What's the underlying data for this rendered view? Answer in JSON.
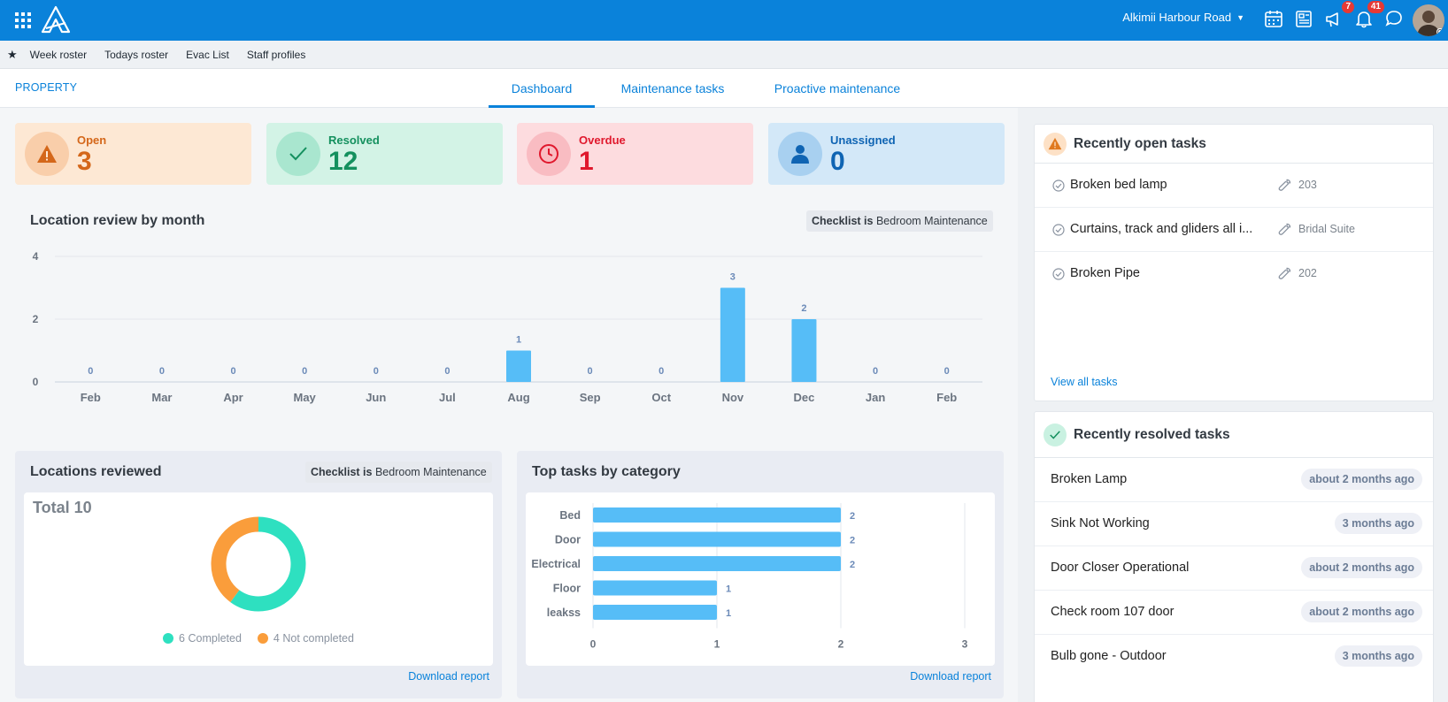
{
  "header": {
    "location_name": "Alkimii Harbour Road",
    "badges": {
      "approvals": "7",
      "notifications": "41"
    },
    "brand_color": "#0a82da"
  },
  "quick_links": [
    "Week roster",
    "Todays roster",
    "Evac List",
    "Staff profiles"
  ],
  "page": {
    "section": "PROPERTY",
    "tabs": [
      "Dashboard",
      "Maintenance tasks",
      "Proactive maintenance"
    ],
    "active_tab": "Dashboard"
  },
  "stats": [
    {
      "label": "Open",
      "value": "3",
      "color": "#d4671a",
      "bg": "#fde8d4",
      "icon": "warning-icon"
    },
    {
      "label": "Resolved",
      "value": "12",
      "color": "#14905e",
      "bg": "#d3f3e6",
      "icon": "check-icon"
    },
    {
      "label": "Overdue",
      "value": "1",
      "color": "#e0182d",
      "bg": "#fddcdf",
      "icon": "clock-icon"
    },
    {
      "label": "Unassigned",
      "value": "0",
      "color": "#0f64b3",
      "bg": "#d3e8f8",
      "icon": "user-icon"
    }
  ],
  "location_review": {
    "title": "Location review by month",
    "filter_key": "Checklist is",
    "filter_value": "Bedroom Maintenance"
  },
  "locations_reviewed": {
    "title": "Locations reviewed",
    "filter_key": "Checklist is",
    "filter_value": "Bedroom Maintenance",
    "total_label": "Total 10",
    "legend": [
      "6 Completed",
      "4 Not completed"
    ],
    "download": "Download report"
  },
  "top_tasks": {
    "title": "Top tasks by category",
    "download": "Download report"
  },
  "chart_data": [
    {
      "type": "bar",
      "title": "Location review by month",
      "categories": [
        "Feb",
        "Mar",
        "Apr",
        "May",
        "Jun",
        "Jul",
        "Aug",
        "Sep",
        "Oct",
        "Nov",
        "Dec",
        "Jan",
        "Feb"
      ],
      "values": [
        0,
        0,
        0,
        0,
        0,
        0,
        1,
        0,
        0,
        3,
        2,
        0,
        0
      ],
      "ylim": [
        0,
        4
      ],
      "yticks": [
        "0",
        "2",
        "4"
      ],
      "grid": true,
      "color": "#56bdf7"
    },
    {
      "type": "pie",
      "title": "Locations reviewed",
      "labels": [
        "Completed",
        "Not completed"
      ],
      "values": [
        6,
        4
      ],
      "colors": [
        "#2ee0c0",
        "#fa9d3b"
      ]
    },
    {
      "type": "bar",
      "orientation": "horizontal",
      "title": "Top tasks by category",
      "categories": [
        "Bed",
        "Door",
        "Electrical",
        "Floor",
        "leakss"
      ],
      "values": [
        2,
        2,
        2,
        1,
        1
      ],
      "xlim": [
        0,
        3
      ],
      "xticks": [
        "0",
        "1",
        "2",
        "3"
      ],
      "color": "#56bdf7"
    }
  ],
  "recent_open": {
    "title": "Recently open tasks",
    "items": [
      {
        "name": "Broken bed lamp",
        "location": "203"
      },
      {
        "name": "Curtains, track and gliders all i...",
        "location": "Bridal Suite"
      },
      {
        "name": "Broken Pipe",
        "location": "202"
      }
    ],
    "view_all": "View all tasks"
  },
  "recent_resolved": {
    "title": "Recently resolved tasks",
    "items": [
      {
        "name": "Broken Lamp",
        "when": "about 2 months ago"
      },
      {
        "name": "Sink Not Working",
        "when": "3 months ago"
      },
      {
        "name": "Door Closer Operational",
        "when": "about 2 months ago"
      },
      {
        "name": "Check room 107 door",
        "when": "about 2 months ago"
      },
      {
        "name": "Bulb gone - Outdoor",
        "when": "3 months ago"
      }
    ]
  }
}
